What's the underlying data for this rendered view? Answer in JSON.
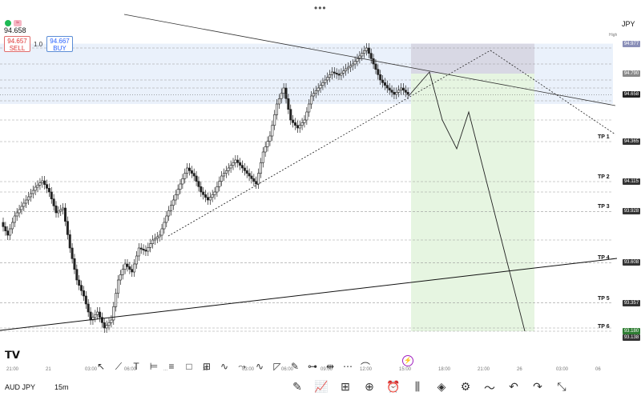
{
  "header": {
    "menu": "•••",
    "pair_suffix": "JPY"
  },
  "price_display": {
    "current": "94.658",
    "sell": "94.657",
    "sell_label": "SELL",
    "buy": "94.667",
    "buy_label": "BUY",
    "qty": "1.0"
  },
  "instrument": {
    "symbol": "AUD JPY",
    "timeframe": "15m"
  },
  "axis": {
    "high_label": "High",
    "tags": [
      {
        "label": "94.977",
        "price": 94.977,
        "color": "#8a8fb8"
      },
      {
        "label": "94.790",
        "price": 94.79,
        "color": "#888"
      },
      {
        "label": "94.658",
        "price": 94.658,
        "color": "#222"
      },
      {
        "label": "94.365",
        "price": 94.365,
        "color": "#333"
      },
      {
        "label": "94.115",
        "price": 94.115,
        "color": "#333"
      },
      {
        "label": "93.928",
        "price": 93.928,
        "color": "#333"
      },
      {
        "label": "93.608",
        "price": 93.608,
        "color": "#333"
      },
      {
        "label": "93.357",
        "price": 93.357,
        "color": "#333"
      },
      {
        "label": "93.180",
        "price": 93.18,
        "color": "#2e7d32"
      },
      {
        "label": "93.138",
        "price": 93.138,
        "color": "#333"
      }
    ]
  },
  "tp_levels": [
    {
      "label": "TP 1",
      "price": 94.365
    },
    {
      "label": "TP 2",
      "price": 94.115
    },
    {
      "label": "TP 3",
      "price": 93.928
    },
    {
      "label": "TP 4",
      "price": 93.608
    },
    {
      "label": "TP 5",
      "price": 93.357
    },
    {
      "label": "TP 6",
      "price": 93.18
    }
  ],
  "x_labels": [
    "21:00",
    "21",
    "03:00",
    "06:00",
    "...",
    "25",
    "03:00",
    "06:00",
    "09:00",
    "12:00",
    "15:00",
    "18:00",
    "21:00",
    "26",
    "03:00",
    "06"
  ],
  "colors": {
    "candle": "#222222",
    "short_zone": "#e6f5e1",
    "risk_zone": "#d8d8e4",
    "blue_band": "#eaf1fb"
  },
  "drawbar_icons": [
    "pointer-icon",
    "line-icon",
    "text-icon",
    "measure-icon",
    "channel-icon",
    "rectangle-icon",
    "grid-icon",
    "brush-icon",
    "path-icon",
    "wave-icon",
    "callout-icon",
    "pencil-icon",
    "ruler-icon",
    "range-icon",
    "connector-icon",
    "curve-icon"
  ],
  "bottom_icons": [
    "pen-icon",
    "indicators-icon",
    "templates-icon",
    "add-icon",
    "alert-icon",
    "candles-icon",
    "layers-icon",
    "settings-icon",
    "compare-icon",
    "undo-icon",
    "redo-icon",
    "fullscreen-icon"
  ],
  "chart_data": {
    "type": "candlestick",
    "title": "",
    "ylim": [
      93.1,
      95.05
    ],
    "current_price": 94.658,
    "short_position": {
      "entry": 94.79,
      "stop": 94.977,
      "target": 93.18
    },
    "projection_path": [
      {
        "t": 0,
        "p": 94.65
      },
      {
        "t": 1,
        "p": 94.8
      },
      {
        "t": 2,
        "p": 94.5
      },
      {
        "t": 3,
        "p": 94.32
      },
      {
        "t": 4,
        "p": 94.55
      },
      {
        "t": 5,
        "p": 93.18
      }
    ],
    "price_path": [
      93.86,
      93.78,
      93.9,
      93.96,
      94.02,
      94.08,
      94.12,
      94.05,
      93.92,
      93.95,
      93.7,
      93.5,
      93.4,
      93.25,
      93.3,
      93.2,
      93.25,
      93.5,
      93.6,
      93.55,
      93.7,
      93.68,
      93.75,
      93.78,
      93.9,
      94.0,
      94.1,
      94.2,
      94.15,
      94.05,
      94.0,
      94.05,
      94.15,
      94.2,
      94.25,
      94.2,
      94.15,
      94.1,
      94.3,
      94.4,
      94.6,
      94.7,
      94.5,
      94.45,
      94.5,
      94.65,
      94.7,
      94.75,
      94.8,
      94.78,
      94.82,
      94.85,
      94.9,
      94.95,
      94.85,
      94.75,
      94.7,
      94.66,
      94.7,
      94.66
    ]
  }
}
